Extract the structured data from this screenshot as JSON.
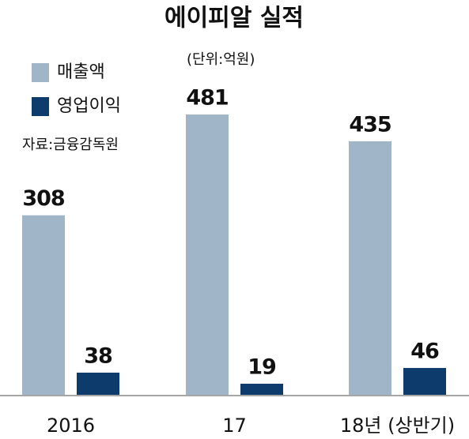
{
  "chart_data": {
    "type": "bar",
    "title": "에이피알 실적",
    "subtitle": "(단위:억원)",
    "source": "자료:금융감독원",
    "categories": [
      "2016",
      "17",
      "18년 (상반기)"
    ],
    "series": [
      {
        "name": "매출액",
        "color": "#a0b5c8",
        "values": [
          308,
          481,
          435
        ]
      },
      {
        "name": "영업이익",
        "color": "#0c3b6c",
        "values": [
          38,
          19,
          46
        ]
      }
    ]
  }
}
